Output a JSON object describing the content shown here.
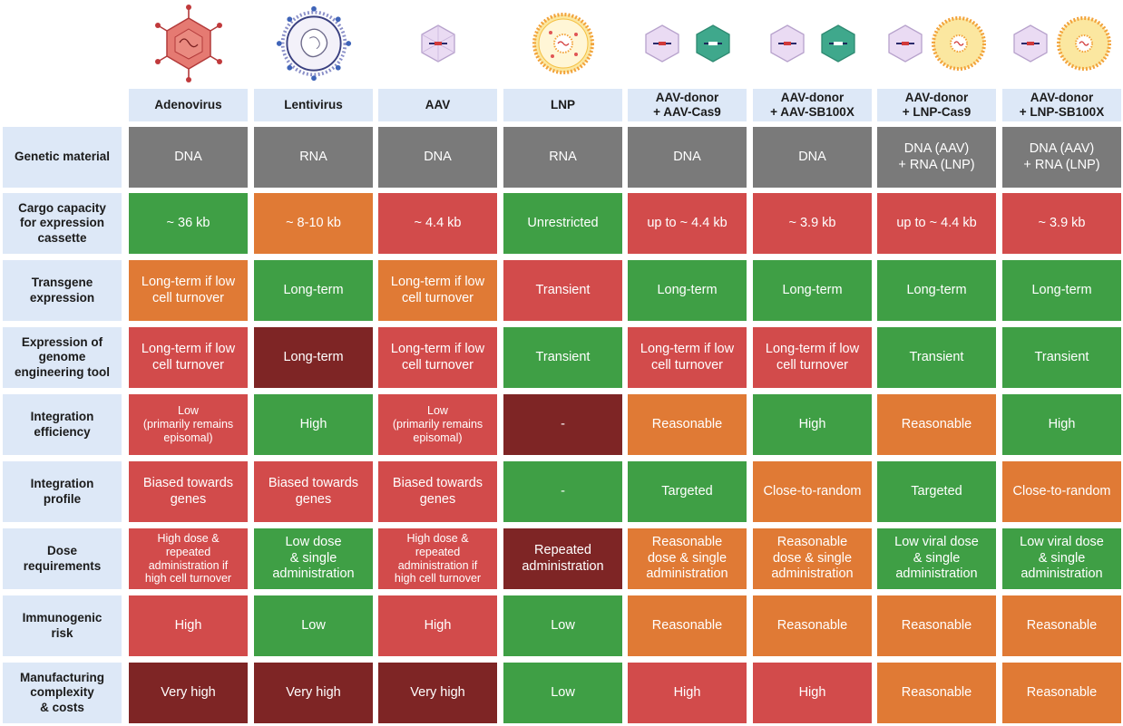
{
  "colors": {
    "grey": "#7a7a7a",
    "green": "#3f9f45",
    "orange": "#e07a35",
    "red": "#d24b4b",
    "darkred": "#7e2525",
    "header_bg": "#dde8f7"
  },
  "columns": [
    {
      "label": "Adenovirus",
      "icon": "adenovirus-icon"
    },
    {
      "label": "Lentivirus",
      "icon": "lentivirus-icon"
    },
    {
      "label": "AAV",
      "icon": "aav-icon"
    },
    {
      "label": "LNP",
      "icon": "lnp-icon"
    },
    {
      "label": "AAV-donor\n+ AAV-Cas9",
      "icon": "aav-pair-icon"
    },
    {
      "label": "AAV-donor\n+ AAV-SB100X",
      "icon": "aav-pair-icon"
    },
    {
      "label": "AAV-donor\n+ LNP-Cas9",
      "icon": "aav-lnp-icon"
    },
    {
      "label": "AAV-donor\n+ LNP-SB100X",
      "icon": "aav-lnp-icon"
    }
  ],
  "rows": [
    {
      "label": "Genetic material",
      "cells": [
        {
          "text": "DNA",
          "color": "grey"
        },
        {
          "text": "RNA",
          "color": "grey"
        },
        {
          "text": "DNA",
          "color": "grey"
        },
        {
          "text": "RNA",
          "color": "grey"
        },
        {
          "text": "DNA",
          "color": "grey"
        },
        {
          "text": "DNA",
          "color": "grey"
        },
        {
          "text": "DNA (AAV)\n+ RNA (LNP)",
          "color": "grey"
        },
        {
          "text": "DNA (AAV)\n+ RNA (LNP)",
          "color": "grey"
        }
      ]
    },
    {
      "label": "Cargo capacity\nfor expression\ncassette",
      "cells": [
        {
          "text": "~ 36 kb",
          "color": "green"
        },
        {
          "text": "~ 8-10 kb",
          "color": "orange"
        },
        {
          "text": "~ 4.4 kb",
          "color": "red"
        },
        {
          "text": "Unrestricted",
          "color": "green"
        },
        {
          "text": "up to ~ 4.4 kb",
          "color": "red"
        },
        {
          "text": "~ 3.9 kb",
          "color": "red"
        },
        {
          "text": "up to ~ 4.4 kb",
          "color": "red"
        },
        {
          "text": "~ 3.9 kb",
          "color": "red"
        }
      ]
    },
    {
      "label": "Transgene\nexpression",
      "cells": [
        {
          "text": "Long-term if low\ncell turnover",
          "color": "orange"
        },
        {
          "text": "Long-term",
          "color": "green"
        },
        {
          "text": "Long-term if low\ncell turnover",
          "color": "orange"
        },
        {
          "text": "Transient",
          "color": "red"
        },
        {
          "text": "Long-term",
          "color": "green"
        },
        {
          "text": "Long-term",
          "color": "green"
        },
        {
          "text": "Long-term",
          "color": "green"
        },
        {
          "text": "Long-term",
          "color": "green"
        }
      ]
    },
    {
      "label": "Expression of\ngenome\nengineering tool",
      "cells": [
        {
          "text": "Long-term if low\ncell turnover",
          "color": "red"
        },
        {
          "text": "Long-term",
          "color": "darkred"
        },
        {
          "text": "Long-term if low\ncell turnover",
          "color": "red"
        },
        {
          "text": "Transient",
          "color": "green"
        },
        {
          "text": "Long-term if low\ncell turnover",
          "color": "red"
        },
        {
          "text": "Long-term if low\ncell turnover",
          "color": "red"
        },
        {
          "text": "Transient",
          "color": "green"
        },
        {
          "text": "Transient",
          "color": "green"
        }
      ]
    },
    {
      "label": "Integration\nefficiency",
      "cells": [
        {
          "text": "Low\n(primarily remains\nepisomal)",
          "color": "red",
          "small": true
        },
        {
          "text": "High",
          "color": "green"
        },
        {
          "text": "Low\n(primarily remains\nepisomal)",
          "color": "red",
          "small": true
        },
        {
          "text": "-",
          "color": "darkred"
        },
        {
          "text": "Reasonable",
          "color": "orange"
        },
        {
          "text": "High",
          "color": "green"
        },
        {
          "text": "Reasonable",
          "color": "orange"
        },
        {
          "text": "High",
          "color": "green"
        }
      ]
    },
    {
      "label": "Integration\nprofile",
      "cells": [
        {
          "text": "Biased towards\ngenes",
          "color": "red"
        },
        {
          "text": "Biased towards\ngenes",
          "color": "red"
        },
        {
          "text": "Biased towards\ngenes",
          "color": "red"
        },
        {
          "text": "-",
          "color": "green"
        },
        {
          "text": "Targeted",
          "color": "green"
        },
        {
          "text": "Close-to-random",
          "color": "orange"
        },
        {
          "text": "Targeted",
          "color": "green"
        },
        {
          "text": "Close-to-random",
          "color": "orange"
        }
      ]
    },
    {
      "label": "Dose\nrequirements",
      "cells": [
        {
          "text": "High dose &\nrepeated\nadministration if\nhigh cell turnover",
          "color": "red",
          "small": true
        },
        {
          "text": "Low dose\n& single\nadministration",
          "color": "green"
        },
        {
          "text": "High dose &\nrepeated\nadministration if\nhigh cell turnover",
          "color": "red",
          "small": true
        },
        {
          "text": "Repeated\nadministration",
          "color": "darkred"
        },
        {
          "text": "Reasonable\ndose & single\nadministration",
          "color": "orange"
        },
        {
          "text": "Reasonable\ndose & single\nadministration",
          "color": "orange"
        },
        {
          "text": "Low viral dose\n& single\nadministration",
          "color": "green"
        },
        {
          "text": "Low viral dose\n& single\nadministration",
          "color": "green"
        }
      ]
    },
    {
      "label": "Immunogenic\nrisk",
      "cells": [
        {
          "text": "High",
          "color": "red"
        },
        {
          "text": "Low",
          "color": "green"
        },
        {
          "text": "High",
          "color": "red"
        },
        {
          "text": "Low",
          "color": "green"
        },
        {
          "text": "Reasonable",
          "color": "orange"
        },
        {
          "text": "Reasonable",
          "color": "orange"
        },
        {
          "text": "Reasonable",
          "color": "orange"
        },
        {
          "text": "Reasonable",
          "color": "orange"
        }
      ]
    },
    {
      "label": "Manufacturing\ncomplexity\n& costs",
      "cells": [
        {
          "text": "Very high",
          "color": "darkred"
        },
        {
          "text": "Very high",
          "color": "darkred"
        },
        {
          "text": "Very high",
          "color": "darkred"
        },
        {
          "text": "Low",
          "color": "green"
        },
        {
          "text": "High",
          "color": "red"
        },
        {
          "text": "High",
          "color": "red"
        },
        {
          "text": "Reasonable",
          "color": "orange"
        },
        {
          "text": "Reasonable",
          "color": "orange"
        }
      ]
    }
  ]
}
